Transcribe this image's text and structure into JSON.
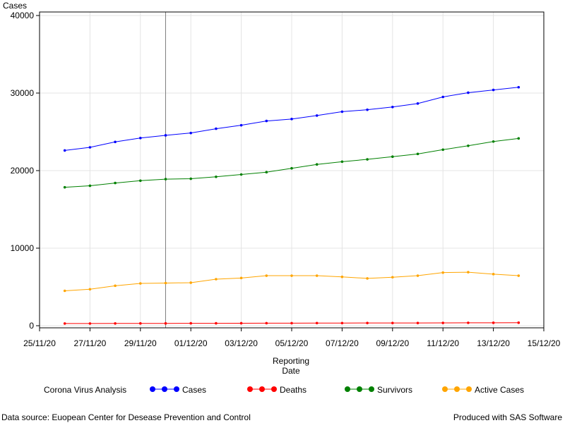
{
  "chart_data": {
    "type": "line",
    "ylabel": "Cases",
    "xlabel_lines": [
      "Reporting",
      "Date"
    ],
    "ylim": [
      0,
      40000
    ],
    "y_ticks": [
      0,
      10000,
      20000,
      30000,
      40000
    ],
    "x_range": [
      "2020-11-25",
      "2020-12-15"
    ],
    "x_ticks": [
      {
        "date": "2020-11-25",
        "label": "25/11/20"
      },
      {
        "date": "2020-11-27",
        "label": "27/11/20"
      },
      {
        "date": "2020-11-29",
        "label": "29/11/20"
      },
      {
        "date": "2020-12-01",
        "label": "01/12/20"
      },
      {
        "date": "2020-12-03",
        "label": "03/12/20"
      },
      {
        "date": "2020-12-05",
        "label": "05/12/20"
      },
      {
        "date": "2020-12-07",
        "label": "07/12/20"
      },
      {
        "date": "2020-12-09",
        "label": "09/12/20"
      },
      {
        "date": "2020-12-11",
        "label": "11/12/20"
      },
      {
        "date": "2020-12-13",
        "label": "13/12/20"
      },
      {
        "date": "2020-12-15",
        "label": "15/12/20"
      }
    ],
    "grid": true,
    "reference_line_date": "2020-11-30",
    "legend_title": "Corona Virus Analysis",
    "legend_position": "bottom",
    "x": [
      "2020-11-26",
      "2020-11-27",
      "2020-11-28",
      "2020-11-29",
      "2020-11-30",
      "2020-12-01",
      "2020-12-02",
      "2020-12-03",
      "2020-12-04",
      "2020-12-05",
      "2020-12-06",
      "2020-12-07",
      "2020-12-08",
      "2020-12-09",
      "2020-12-10",
      "2020-12-11",
      "2020-12-12",
      "2020-12-13",
      "2020-12-14"
    ],
    "series": [
      {
        "name": "Cases",
        "color": "#0000ff",
        "values": [
          22600,
          23000,
          23700,
          24200,
          24550,
          24850,
          25400,
          25850,
          26400,
          26650,
          27100,
          27600,
          27850,
          28200,
          28650,
          29500,
          30050,
          30400,
          30750
        ]
      },
      {
        "name": "Deaths",
        "color": "#ff0000",
        "values": [
          280,
          280,
          290,
          300,
          300,
          310,
          310,
          320,
          330,
          330,
          340,
          340,
          350,
          350,
          350,
          360,
          370,
          380,
          390
        ]
      },
      {
        "name": "Survivors",
        "color": "#008000",
        "values": [
          17850,
          18050,
          18400,
          18700,
          18900,
          18950,
          19200,
          19500,
          19800,
          20300,
          20800,
          21150,
          21450,
          21800,
          22150,
          22700,
          23200,
          23750,
          24150
        ]
      },
      {
        "name": "Active Cases",
        "color": "#ffa500",
        "values": [
          4500,
          4700,
          5150,
          5450,
          5500,
          5550,
          6000,
          6150,
          6450,
          6450,
          6450,
          6300,
          6100,
          6250,
          6450,
          6850,
          6900,
          6650,
          6450
        ]
      }
    ]
  },
  "footer": {
    "source": "Data source: Euopean Center for Desease Prevention and Control",
    "credit": "Produced with SAS Software"
  }
}
